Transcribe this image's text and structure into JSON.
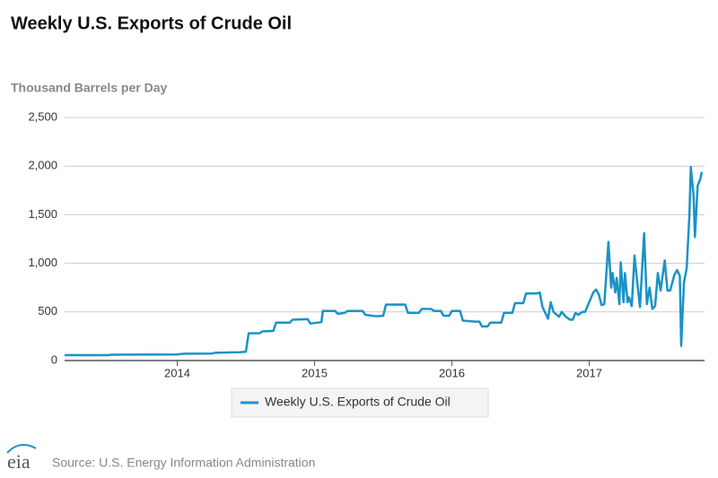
{
  "chart_data": {
    "type": "line",
    "title": "Weekly U.S. Exports of Crude Oil",
    "y_label": "Thousand Barrels per Day",
    "x": [
      2013.18,
      2013.5,
      2013.52,
      2014.0,
      2014.05,
      2014.25,
      2014.28,
      2014.45,
      2014.5,
      2014.52,
      2014.6,
      2014.62,
      2014.7,
      2014.72,
      2014.82,
      2014.84,
      2014.95,
      2014.97,
      2015.05,
      2015.06,
      2015.15,
      2015.17,
      2015.22,
      2015.24,
      2015.35,
      2015.37,
      2015.45,
      2015.5,
      2015.52,
      2015.66,
      2015.68,
      2015.76,
      2015.78,
      2015.85,
      2015.87,
      2015.92,
      2015.94,
      2015.98,
      2016.0,
      2016.06,
      2016.08,
      2016.17,
      2016.2,
      2016.22,
      2016.26,
      2016.28,
      2016.36,
      2016.38,
      2016.44,
      2016.46,
      2016.52,
      2016.54,
      2016.62,
      2016.64,
      2016.66,
      2016.7,
      2016.72,
      2016.74,
      2016.78,
      2016.8,
      2016.83,
      2016.86,
      2016.88,
      2016.9,
      2016.92,
      2016.95,
      2016.97,
      2017.0,
      2017.03,
      2017.05,
      2017.07,
      2017.09,
      2017.11,
      2017.13,
      2017.14,
      2017.16,
      2017.17,
      2017.19,
      2017.2,
      2017.22,
      2017.23,
      2017.25,
      2017.26,
      2017.28,
      2017.29,
      2017.31,
      2017.33,
      2017.35,
      2017.37,
      2017.4,
      2017.42,
      2017.44,
      2017.46,
      2017.48,
      2017.5,
      2017.52,
      2017.55,
      2017.57,
      2017.59,
      2017.62,
      2017.64,
      2017.66,
      2017.67,
      2017.69,
      2017.71,
      2017.73,
      2017.74,
      2017.76,
      2017.77,
      2017.79,
      2017.81,
      2017.82
    ],
    "series": [
      {
        "name": "Weekly U.S. Exports of Crude Oil",
        "color": "#1a93c6",
        "values": [
          55,
          55,
          60,
          62,
          70,
          72,
          80,
          85,
          90,
          280,
          280,
          300,
          305,
          390,
          390,
          420,
          425,
          380,
          395,
          510,
          510,
          480,
          490,
          510,
          510,
          470,
          455,
          460,
          575,
          575,
          490,
          490,
          530,
          530,
          510,
          510,
          460,
          460,
          510,
          510,
          410,
          400,
          400,
          350,
          350,
          390,
          390,
          490,
          490,
          590,
          590,
          690,
          690,
          700,
          550,
          430,
          600,
          500,
          450,
          500,
          450,
          420,
          420,
          490,
          470,
          500,
          500,
          600,
          700,
          730,
          680,
          570,
          580,
          1000,
          1220,
          750,
          900,
          700,
          850,
          580,
          1010,
          600,
          900,
          600,
          650,
          560,
          1080,
          800,
          550,
          1310,
          580,
          750,
          530,
          560,
          900,
          720,
          1030,
          720,
          720,
          880,
          930,
          870,
          150,
          800,
          950,
          1500,
          1990,
          1700,
          1270,
          1800,
          1870,
          1940
        ]
      }
    ],
    "xlim": [
      2013.18,
      2017.84
    ],
    "xticks": [
      2014,
      2015,
      2016,
      2017
    ],
    "ylim": [
      0,
      2500
    ],
    "yticks": [
      0,
      500,
      {
        "value": 1000,
        "label": "1,000"
      },
      {
        "value": 1500,
        "label": "1,500"
      },
      {
        "value": 2000,
        "label": "2,000"
      },
      {
        "value": 2500,
        "label": "2,500"
      }
    ],
    "grid": true,
    "legend": "bottom",
    "source": "Source: U.S. Energy Information Administration",
    "logo": "eia"
  }
}
